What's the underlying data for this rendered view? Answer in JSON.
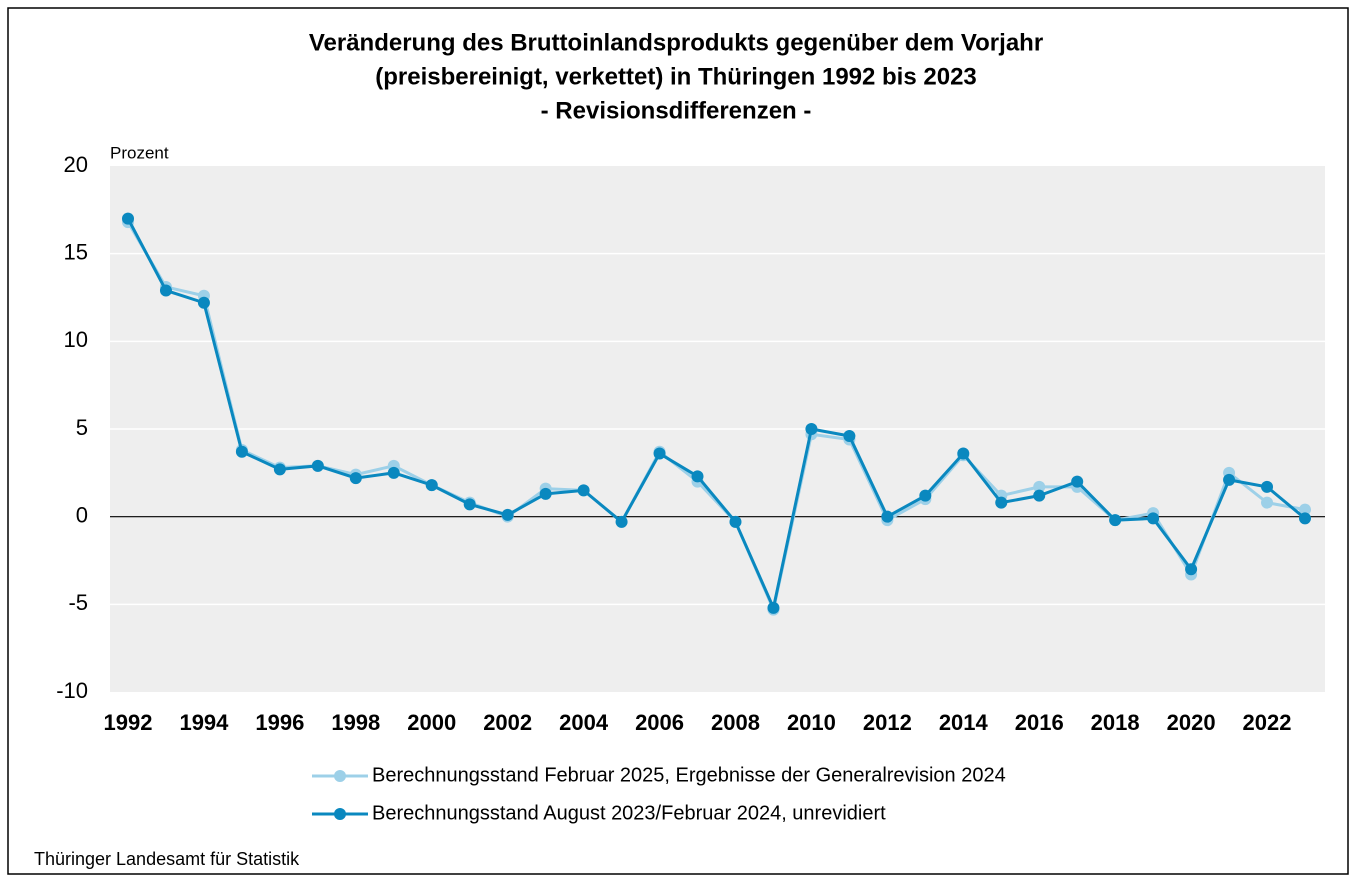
{
  "chart_data": {
    "type": "line",
    "title": [
      "Veränderung des Bruttoinlandsprodukts gegenüber dem Vorjahr",
      "(preisbereinigt, verkettet) in Thüringen 1992 bis 2023",
      "- Revisionsdifferenzen -"
    ],
    "y_label": "Prozent",
    "source": "Thüringer Landesamt für Statistik",
    "categories": [
      "1992",
      null,
      "1994",
      null,
      "1996",
      null,
      "1998",
      null,
      "2000",
      null,
      "2002",
      null,
      "2004",
      null,
      "2006",
      null,
      "2008",
      null,
      "2010",
      null,
      "2012",
      null,
      "2014",
      null,
      "2016",
      null,
      "2018",
      null,
      "2020",
      null,
      "2022",
      null
    ],
    "series": [
      {
        "name": "Berechnungsstand Februar 2025, Ergebnisse der Generalrevision 2024",
        "color": "#9dd0e8",
        "values": [
          16.8,
          13.1,
          12.6,
          3.8,
          2.8,
          2.9,
          2.4,
          2.9,
          1.8,
          0.8,
          0.0,
          1.6,
          1.5,
          -0.3,
          3.7,
          2.0,
          -0.3,
          -5.3,
          4.7,
          4.4,
          -0.2,
          1.0,
          3.5,
          1.2,
          1.7,
          1.7,
          -0.2,
          0.2,
          -3.3,
          2.5,
          0.8,
          0.4
        ]
      },
      {
        "name": "Berechnungsstand August 2023/Februar 2024, unrevidiert",
        "color": "#0a88bf",
        "values": [
          17.0,
          12.9,
          12.2,
          3.7,
          2.7,
          2.9,
          2.2,
          2.5,
          1.8,
          0.7,
          0.1,
          1.3,
          1.5,
          -0.3,
          3.6,
          2.3,
          -0.3,
          -5.2,
          5.0,
          4.6,
          0.0,
          1.2,
          3.6,
          0.8,
          1.2,
          2.0,
          -0.2,
          -0.1,
          -3.0,
          2.1,
          1.7,
          -0.1
        ]
      }
    ],
    "ylim": [
      -10,
      20
    ],
    "yticks": [
      -10,
      -5,
      0,
      5,
      10,
      15,
      20
    ],
    "grid": true
  }
}
